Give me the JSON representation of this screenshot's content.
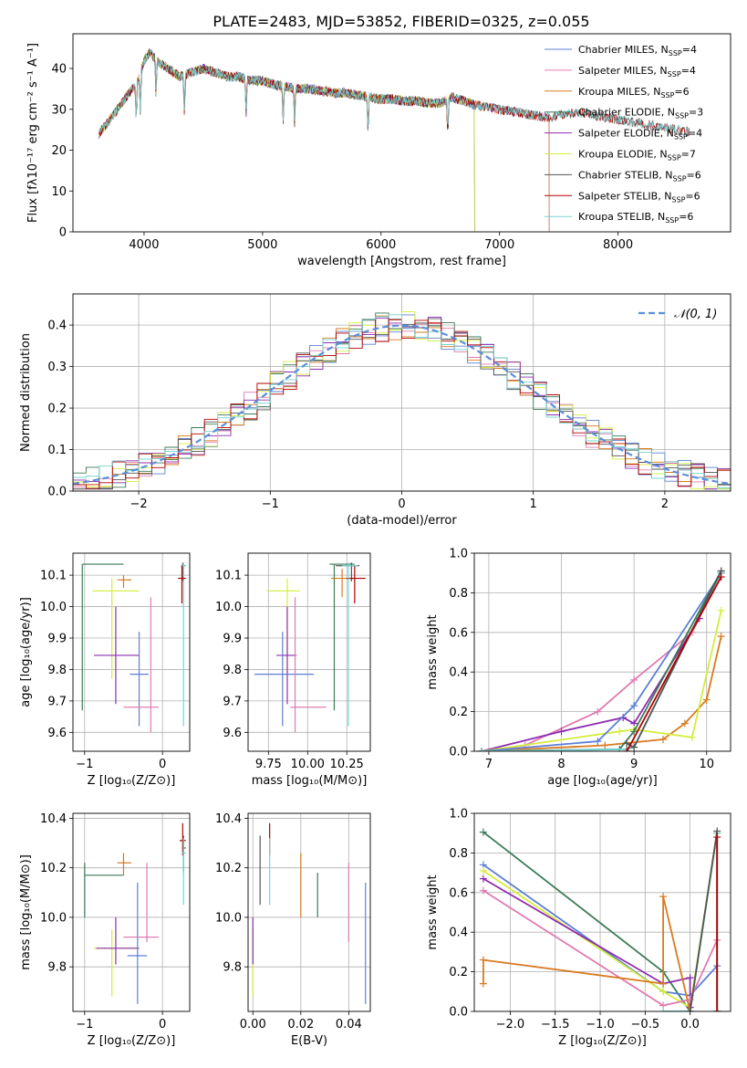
{
  "figure": {
    "title": "PLATE=2483, MJD=53852, FIBERID=0325, z=0.055"
  },
  "chart_data": [
    {
      "id": "spectrum",
      "type": "line",
      "xlabel": "wavelength [Angstrom, rest frame]",
      "ylabel": "Flux [fλ10⁻¹⁷ erg cm⁻² s⁻¹ A⁻¹]",
      "xlim": [
        3400,
        8950
      ],
      "ylim": [
        0,
        48.5
      ],
      "xticks": [
        4000,
        5000,
        6000,
        7000,
        8000
      ],
      "yticks": [
        0,
        10,
        20,
        30,
        40
      ],
      "legend_position": "top-right",
      "spectrum_shape": {
        "x": [
          3620,
          3700,
          3800,
          3900,
          3950,
          4000,
          4050,
          4100,
          4200,
          4300,
          4400,
          4500,
          4600,
          4700,
          4800,
          4900,
          5000,
          5100,
          5200,
          5300,
          5400,
          5500,
          5600,
          5700,
          5800,
          5900,
          6000,
          6100,
          6200,
          6300,
          6400,
          6500,
          6600,
          6700,
          6800,
          6900,
          7000,
          7100,
          7200,
          7300,
          7400,
          7500,
          7600,
          7700,
          7800,
          7900,
          8000,
          8100,
          8200,
          8300,
          8400,
          8500,
          8600
        ],
        "y": [
          24,
          27,
          31,
          35,
          37,
          42,
          44,
          42,
          40,
          38,
          39,
          40,
          39,
          38,
          38,
          37,
          37,
          36,
          35.5,
          35,
          35,
          34.5,
          34,
          34,
          33.5,
          33,
          32.5,
          32.5,
          32,
          32,
          31.5,
          31.5,
          33,
          32,
          31,
          30.5,
          30,
          29.5,
          29,
          28.5,
          28,
          28.5,
          29,
          29,
          28.5,
          28,
          27.5,
          27,
          26.5,
          26,
          25.5,
          25,
          24.5
        ]
      },
      "series": [
        {
          "name": "Chabrier MILES, N",
          "sub": "SSP",
          "suffix": "=4",
          "color": "#5c7fd6",
          "xmax": 7420
        },
        {
          "name": "Salpeter MILES, N",
          "sub": "SSP",
          "suffix": "=4",
          "color": "#e07bb0",
          "xmax": 7420
        },
        {
          "name": "Kroupa MILES, N",
          "sub": "SSP",
          "suffix": "=6",
          "color": "#d97a1f",
          "xmax": 7420
        },
        {
          "name": "Chabrier ELODIE, N",
          "sub": "SSP",
          "suffix": "=3",
          "color": "#3b7a57",
          "xmax": 6790
        },
        {
          "name": "Salpeter ELODIE, N",
          "sub": "SSP",
          "suffix": "=4",
          "color": "#8e2cb0",
          "xmax": 6790
        },
        {
          "name": "Kroupa ELODIE, N",
          "sub": "SSP",
          "suffix": "=7",
          "color": "#d4ed3a",
          "xmax": 6790
        },
        {
          "name": "Chabrier STELIB, N",
          "sub": "SSP",
          "suffix": "=6",
          "color": "#555555",
          "xmax": 8600
        },
        {
          "name": "Salpeter STELIB, N",
          "sub": "SSP",
          "suffix": "=6",
          "color": "#b30000",
          "xmax": 8600
        },
        {
          "name": "Kroupa STELIB, N",
          "sub": "SSP",
          "suffix": "=6",
          "color": "#74d4d4",
          "xmax": 8600
        }
      ]
    },
    {
      "id": "residuals",
      "type": "histogram",
      "xlabel": "(data-model)/error",
      "ylabel": "Normed distribution",
      "xlim": [
        -2.5,
        2.5
      ],
      "ylim": [
        0,
        0.475
      ],
      "xticks": [
        -2,
        -1,
        0,
        1,
        2
      ],
      "yticks": [
        0.0,
        0.1,
        0.2,
        0.3,
        0.4
      ],
      "grid": true,
      "legend": "𝒩(0, 1)",
      "legend_position": "top-right",
      "bin_width": 0.1,
      "normal_color": "#5b8fd9"
    },
    {
      "id": "age-vs-Z",
      "type": "errorbar",
      "xlabel": "Z [log₁₀(Z/Z⊙)]",
      "ylabel": "age  [log₁₀(age/yr)]",
      "xlim": [
        -1.15,
        0.35
      ],
      "ylim": [
        9.54,
        10.17
      ],
      "xticks": [
        -1,
        0
      ],
      "yticks": [
        9.6,
        9.7,
        9.8,
        9.9,
        10.0,
        10.1
      ],
      "grid": true,
      "points": [
        {
          "color": "#3b7a57",
          "x": -1.03,
          "y": 10.135,
          "xl": -1.03,
          "xh": -0.5,
          "yl": 9.67,
          "yh": 10.135
        },
        {
          "color": "#d4ed3a",
          "x": -0.65,
          "y": 10.05,
          "xl": -0.9,
          "xh": -0.3,
          "yl": 9.77,
          "yh": 10.09
        },
        {
          "color": "#d97a1f",
          "x": -0.5,
          "y": 10.085,
          "xl": -0.58,
          "xh": -0.4,
          "yl": 10.06,
          "yh": 10.1
        },
        {
          "color": "#8e2cb0",
          "x": -0.6,
          "y": 9.845,
          "xl": -0.88,
          "xh": -0.3,
          "yl": 9.69,
          "yh": 10.0
        },
        {
          "color": "#5c7fd6",
          "x": -0.3,
          "y": 9.785,
          "xl": -0.42,
          "xh": -0.18,
          "yl": 9.62,
          "yh": 9.92
        },
        {
          "color": "#e07bb0",
          "x": -0.15,
          "y": 9.68,
          "xl": -0.5,
          "xh": -0.05,
          "yl": 9.6,
          "yh": 10.03
        },
        {
          "color": "#555555",
          "x": 0.26,
          "y": 10.13,
          "xl": 0.24,
          "xh": 0.3,
          "yl": 10.08,
          "yh": 10.14
        },
        {
          "color": "#74d4d4",
          "x": 0.27,
          "y": 10.13,
          "xl": 0.25,
          "xh": 0.3,
          "yl": 9.62,
          "yh": 10.14
        },
        {
          "color": "#b30000",
          "x": 0.25,
          "y": 10.09,
          "xl": 0.2,
          "xh": 0.3,
          "yl": 10.01,
          "yh": 10.13
        }
      ]
    },
    {
      "id": "age-vs-mass",
      "type": "errorbar",
      "xlabel": "mass [log₁₀(M/M⊙)]",
      "ylabel": "",
      "xlim": [
        9.62,
        10.4
      ],
      "ylim": [
        9.54,
        10.17
      ],
      "xticks": [
        9.75,
        10.0,
        10.25
      ],
      "xtick_labels": [
        "9.75",
        "10.00",
        "10.25"
      ],
      "yticks": [
        9.6,
        9.7,
        9.8,
        9.9,
        10.0,
        10.1
      ],
      "grid": true,
      "points": [
        {
          "color": "#3b7a57",
          "x": 10.17,
          "y": 10.135,
          "xl": 10.14,
          "xh": 10.3,
          "yl": 9.67,
          "yh": 10.135
        },
        {
          "color": "#d4ed3a",
          "x": 9.87,
          "y": 10.05,
          "xl": 9.74,
          "xh": 9.95,
          "yl": 9.77,
          "yh": 10.09
        },
        {
          "color": "#d97a1f",
          "x": 10.22,
          "y": 10.09,
          "xl": 10.15,
          "xh": 10.3,
          "yl": 10.03,
          "yh": 10.12
        },
        {
          "color": "#8e2cb0",
          "x": 9.87,
          "y": 9.845,
          "xl": 9.8,
          "xh": 9.93,
          "yl": 9.69,
          "yh": 10.0
        },
        {
          "color": "#5c7fd6",
          "x": 9.84,
          "y": 9.785,
          "xl": 9.66,
          "xh": 10.04,
          "yl": 9.62,
          "yh": 9.92
        },
        {
          "color": "#e07bb0",
          "x": 9.92,
          "y": 9.68,
          "xl": 9.89,
          "xh": 10.12,
          "yl": 9.6,
          "yh": 10.03
        },
        {
          "color": "#555555",
          "x": 10.28,
          "y": 10.13,
          "xl": 10.18,
          "xh": 10.33,
          "yl": 10.08,
          "yh": 10.14
        },
        {
          "color": "#b30000",
          "x": 10.3,
          "y": 10.09,
          "xl": 10.25,
          "xh": 10.37,
          "yl": 10.01,
          "yh": 10.13
        },
        {
          "color": "#74d4d4",
          "x": 10.26,
          "y": 10.13,
          "xl": 10.22,
          "xh": 10.32,
          "yl": 9.62,
          "yh": 10.14
        }
      ]
    },
    {
      "id": "massweight-vs-age",
      "type": "line",
      "xlabel": "age  [log₁₀(age/yr)]",
      "ylabel": "mass weight",
      "xlim": [
        6.8,
        10.33
      ],
      "ylim": [
        0,
        1.0
      ],
      "xticks": [
        7,
        8,
        9,
        10
      ],
      "yticks": [
        0.0,
        0.2,
        0.4,
        0.6,
        0.8,
        1.0
      ],
      "grid": true,
      "series": [
        {
          "color": "#e07bb0",
          "x": [
            6.9,
            7.5,
            8.5,
            9.0,
            9.8,
            10.2
          ],
          "y": [
            0.0,
            0.03,
            0.2,
            0.36,
            0.6,
            0.9
          ]
        },
        {
          "color": "#8e2cb0",
          "x": [
            6.9,
            8.0,
            8.85,
            9.0,
            9.9
          ],
          "y": [
            0.0,
            0.1,
            0.17,
            0.14,
            0.67
          ]
        },
        {
          "color": "#d97a1f",
          "x": [
            6.9,
            8.6,
            9.4,
            9.7,
            10.0,
            10.2
          ],
          "y": [
            0.0,
            0.03,
            0.06,
            0.14,
            0.26,
            0.58
          ]
        },
        {
          "color": "#d4ed3a",
          "x": [
            6.9,
            8.8,
            9.0,
            9.8,
            10.2
          ],
          "y": [
            0.0,
            0.1,
            0.11,
            0.07,
            0.71
          ]
        },
        {
          "color": "#5c7fd6",
          "x": [
            6.9,
            8.5,
            9.0,
            10.2
          ],
          "y": [
            0.0,
            0.05,
            0.23,
            0.9
          ]
        },
        {
          "color": "#3b7a57",
          "x": [
            6.9,
            8.8,
            9.0,
            10.2
          ],
          "y": [
            0.0,
            0.01,
            0.1,
            0.91
          ]
        },
        {
          "color": "#74d4d4",
          "x": [
            6.9,
            8.9,
            9.0,
            10.2
          ],
          "y": [
            0.0,
            0.01,
            0.02,
            0.9
          ]
        },
        {
          "color": "#555555",
          "x": [
            8.9,
            9.0,
            10.2
          ],
          "y": [
            0.04,
            0.02,
            0.91
          ]
        },
        {
          "color": "#b30000",
          "x": [
            8.9,
            10.2
          ],
          "y": [
            0.0,
            0.88
          ]
        }
      ]
    },
    {
      "id": "mass-vs-Z",
      "type": "errorbar",
      "xlabel": "Z [log₁₀(Z/Z⊙)]",
      "ylabel": "mass [log₁₀(M/M⊙)]",
      "xlim": [
        -1.15,
        0.35
      ],
      "ylim": [
        9.62,
        10.42
      ],
      "xticks": [
        -1,
        0
      ],
      "yticks": [
        9.8,
        10.0,
        10.2,
        10.4
      ],
      "grid": true,
      "points": [
        {
          "color": "#3b7a57",
          "x": -1.0,
          "y": 10.17,
          "xl": -1.0,
          "xh": -0.5,
          "yl": 10.0,
          "yh": 10.22
        },
        {
          "color": "#d4ed3a",
          "x": -0.65,
          "y": 9.875,
          "xl": -0.88,
          "xh": -0.3,
          "yl": 9.68,
          "yh": 9.95
        },
        {
          "color": "#d97a1f",
          "x": -0.5,
          "y": 10.22,
          "xl": -0.58,
          "xh": -0.4,
          "yl": 10.17,
          "yh": 10.26
        },
        {
          "color": "#8e2cb0",
          "x": -0.6,
          "y": 9.875,
          "xl": -0.85,
          "xh": -0.3,
          "yl": 9.81,
          "yh": 10.0
        },
        {
          "color": "#5c7fd6",
          "x": -0.32,
          "y": 9.845,
          "xl": -0.45,
          "xh": -0.2,
          "yl": 9.65,
          "yh": 10.14
        },
        {
          "color": "#e07bb0",
          "x": -0.2,
          "y": 9.92,
          "xl": -0.5,
          "xh": -0.05,
          "yl": 9.9,
          "yh": 10.22
        },
        {
          "color": "#555555",
          "x": 0.27,
          "y": 10.28,
          "xl": 0.25,
          "xh": 0.3,
          "yl": 10.18,
          "yh": 10.33
        },
        {
          "color": "#b30000",
          "x": 0.26,
          "y": 10.31,
          "xl": 0.22,
          "xh": 0.3,
          "yl": 10.25,
          "yh": 10.38
        },
        {
          "color": "#74d4d4",
          "x": 0.27,
          "y": 10.26,
          "xl": 0.25,
          "xh": 0.3,
          "yl": 10.05,
          "yh": 10.32
        }
      ]
    },
    {
      "id": "mass-vs-EBV",
      "type": "errorbar",
      "xlabel": "E(B-V)",
      "ylabel": "",
      "xlim": [
        -0.002,
        0.049
      ],
      "ylim": [
        9.62,
        10.42
      ],
      "xticks": [
        0.0,
        0.02,
        0.04
      ],
      "xtick_labels": [
        "0.00",
        "0.02",
        "0.04"
      ],
      "yticks": [
        9.8,
        10.0,
        10.2,
        10.4
      ],
      "grid": true,
      "points": [
        {
          "color": "#d4ed3a",
          "x": 0.0,
          "yl": 9.68,
          "yh": 9.95
        },
        {
          "color": "#8e2cb0",
          "x": 0.0,
          "yl": 9.81,
          "yh": 10.0
        },
        {
          "color": "#555555",
          "x": 0.003,
          "yl": 10.05,
          "yh": 10.33
        },
        {
          "color": "#b30000",
          "x": 0.007,
          "yl": 10.25,
          "yh": 10.38
        },
        {
          "color": "#74d4d4",
          "x": 0.007,
          "yl": 10.05,
          "yh": 10.32
        },
        {
          "color": "#d97a1f",
          "x": 0.02,
          "yl": 10.0,
          "yh": 10.26
        },
        {
          "color": "#3b7a57",
          "x": 0.027,
          "yl": 10.0,
          "yh": 10.18
        },
        {
          "color": "#e07bb0",
          "x": 0.04,
          "yl": 9.9,
          "yh": 10.22
        },
        {
          "color": "#5c7fd6",
          "x": 0.047,
          "yl": 9.65,
          "yh": 10.14
        }
      ]
    },
    {
      "id": "massweight-vs-Z",
      "type": "line",
      "xlabel": "Z [log₁₀(Z/Z⊙)]",
      "ylabel": "mass weight",
      "xlim": [
        -2.4,
        0.45
      ],
      "ylim": [
        0,
        1.0
      ],
      "xticks": [
        -2.0,
        -1.5,
        -1.0,
        -0.5,
        0.0
      ],
      "xtick_labels": [
        "−2.0",
        "−1.5",
        "−1.0",
        "−0.5",
        "0.0"
      ],
      "yticks": [
        0.0,
        0.2,
        0.4,
        0.6,
        0.8,
        1.0
      ],
      "grid": true,
      "series": [
        {
          "color": "#3b7a57",
          "x": [
            -2.3,
            -0.3,
            0.0,
            0.3
          ],
          "y": [
            0.905,
            0.2,
            0.0,
            0.9
          ]
        },
        {
          "color": "#5c7fd6",
          "x": [
            -2.3,
            -0.3,
            0.0,
            0.3
          ],
          "y": [
            0.74,
            0.1,
            0.08,
            0.23
          ]
        },
        {
          "color": "#d4ed3a",
          "x": [
            -2.3,
            -0.3,
            0.0,
            0.3
          ],
          "y": [
            0.71,
            0.1,
            0.02,
            0.9
          ]
        },
        {
          "color": "#8e2cb0",
          "x": [
            -2.3,
            -0.3,
            0.0,
            0.0
          ],
          "y": [
            0.67,
            0.14,
            0.17,
            0.02
          ]
        },
        {
          "color": "#e07bb0",
          "x": [
            -2.3,
            -0.3,
            0.0,
            0.3
          ],
          "y": [
            0.61,
            0.03,
            0.06,
            0.36
          ]
        },
        {
          "color": "#d97a1f",
          "x": [
            -2.3,
            -2.3,
            -0.3,
            -0.3,
            0.0
          ],
          "y": [
            0.14,
            0.26,
            0.14,
            0.58,
            0.0
          ]
        },
        {
          "color": "#74d4d4",
          "x": [
            -0.3,
            0.0,
            0.3,
            0.3
          ],
          "y": [
            0.0,
            0.0,
            0.9,
            0.0
          ]
        },
        {
          "color": "#555555",
          "x": [
            0.0,
            0.3,
            0.3
          ],
          "y": [
            0.0,
            0.91,
            0.0
          ]
        },
        {
          "color": "#b30000",
          "x": [
            0.3,
            0.3
          ],
          "y": [
            0.88,
            0.0
          ]
        }
      ]
    }
  ]
}
